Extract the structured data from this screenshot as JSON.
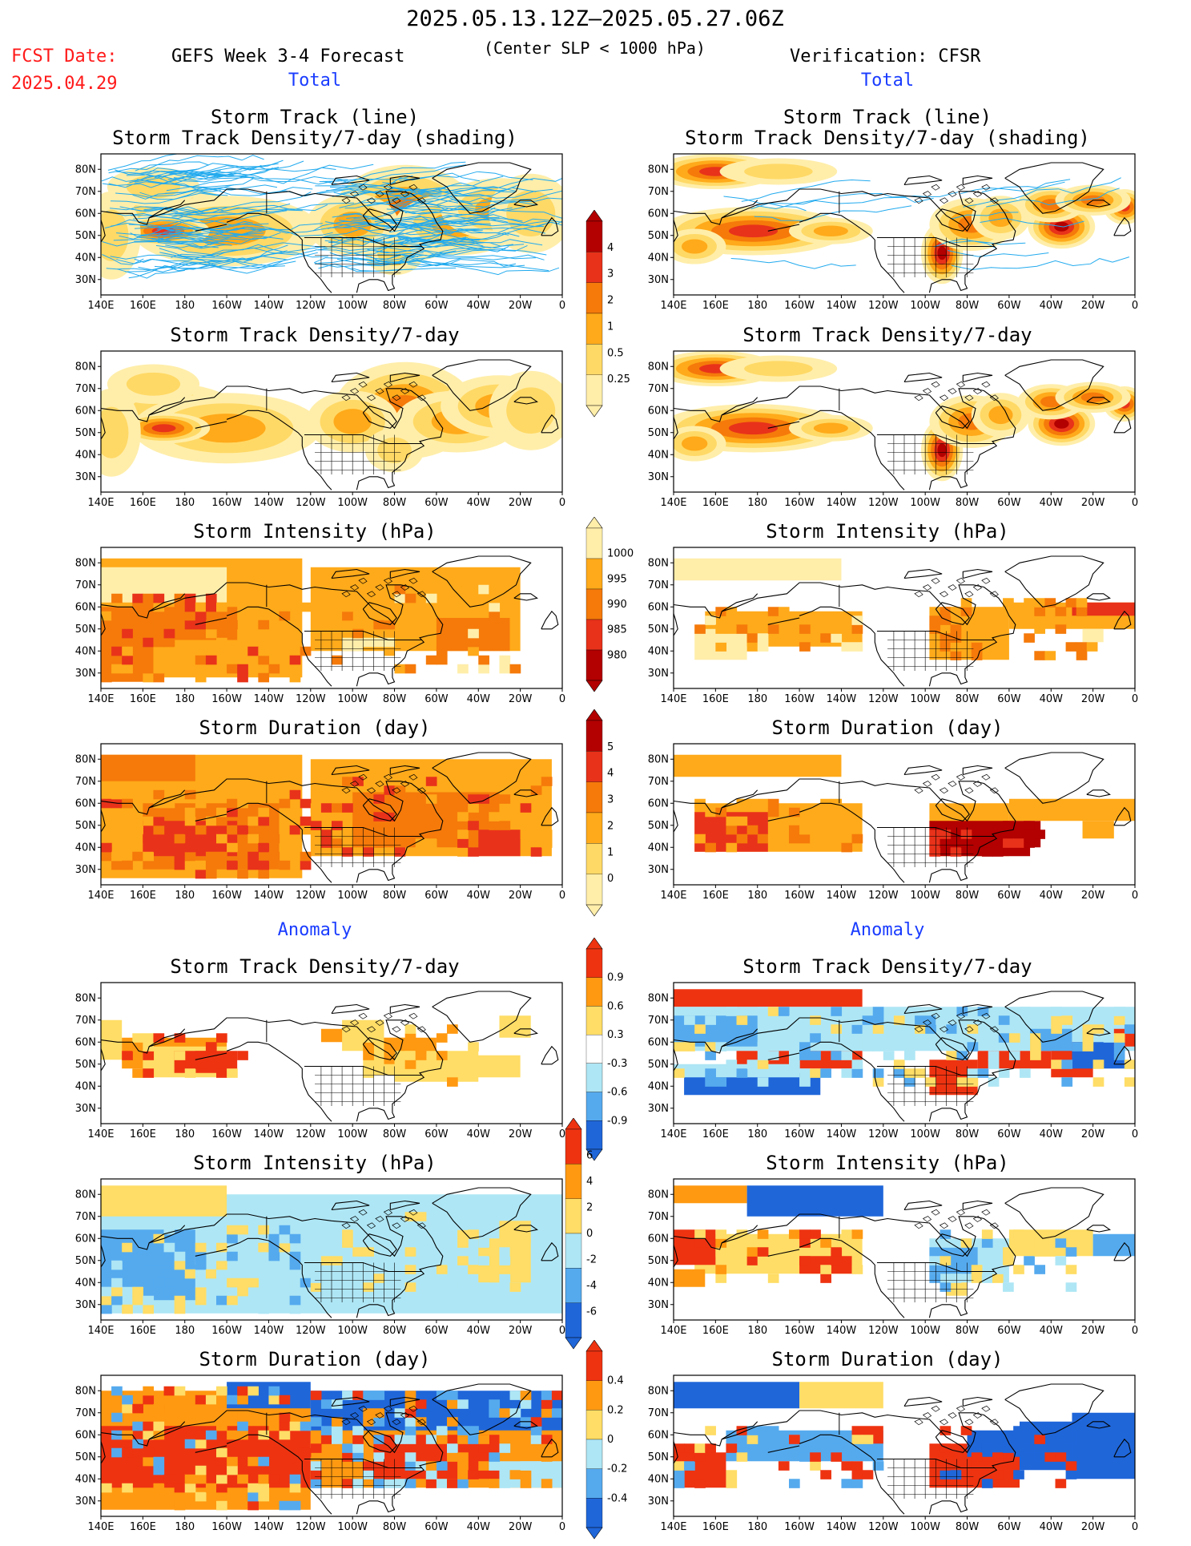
{
  "header": {
    "period": "2025.05.13.12Z–2025.05.27.06Z",
    "fcst_label": "FCST Date:",
    "fcst_date": "2025.04.29",
    "left_title": "GEFS Week 3-4 Forecast",
    "criterion": "(Center SLP < 1000 hPa)",
    "right_title": "Verification: CFSR"
  },
  "sections": {
    "total_left": "Total",
    "total_right": "Total",
    "anomaly_left": "Anomaly",
    "anomaly_right": "Anomaly"
  },
  "panel_titles": {
    "track_line": "Storm Track (line)",
    "track_density_shading": "Storm Track Density/7-day (shading)",
    "track_density": "Storm Track Density/7-day",
    "intensity": "Storm Intensity (hPa)",
    "duration": "Storm Duration (day)"
  },
  "axes": {
    "lon_labels": [
      "140E",
      "160E",
      "180",
      "160W",
      "140W",
      "120W",
      "100W",
      "80W",
      "60W",
      "40W",
      "20W",
      "0"
    ],
    "lat_labels": [
      "80N",
      "70N",
      "60N",
      "50N",
      "40N",
      "30N"
    ]
  },
  "colorbars": {
    "density_total": {
      "labels": [
        "4",
        "3",
        "2",
        "1",
        "0.5",
        "0.25"
      ],
      "colors": [
        "#b30000",
        "#e8321a",
        "#f57a0a",
        "#ffaa1a",
        "#ffd966",
        "#ffeeaa"
      ]
    },
    "intensity_total": {
      "labels": [
        "1000",
        "995",
        "990",
        "985",
        "980"
      ],
      "colors": [
        "#ffeeaa",
        "#ffaa1a",
        "#f57a0a",
        "#e8321a",
        "#b30000"
      ]
    },
    "duration_total": {
      "labels": [
        "5",
        "4",
        "3",
        "2",
        "1",
        "0"
      ],
      "colors": [
        "#b30000",
        "#e8321a",
        "#f57a0a",
        "#ffaa1a",
        "#ffd966",
        "#ffeeaa"
      ]
    },
    "density_anom": {
      "labels": [
        "0.9",
        "0.6",
        "0.3",
        "-0.3",
        "-0.6",
        "-0.9"
      ],
      "colors": [
        "#ee3311",
        "#ff9911",
        "#ffdd66",
        "#ffffff",
        "#aee6f5",
        "#55aaee",
        "#1f66d9"
      ]
    },
    "intensity_anom": {
      "labels": [
        "6",
        "4",
        "2",
        "0",
        "-2",
        "-4",
        "-6"
      ],
      "colors": [
        "#ee3311",
        "#ff9911",
        "#ffdd66",
        "#aee6f5",
        "#55aaee",
        "#1f66d9"
      ]
    },
    "duration_anom": {
      "labels": [
        "0.4",
        "0.2",
        "0",
        "-0.2",
        "-0.4"
      ],
      "colors": [
        "#ee3311",
        "#ff9911",
        "#ffdd66",
        "#aee6f5",
        "#55aaee",
        "#1f66d9"
      ]
    }
  },
  "colors": {
    "track_line": "#22aaee",
    "header_red": "#ff1a1a",
    "section_blue": "#1a3cff"
  }
}
